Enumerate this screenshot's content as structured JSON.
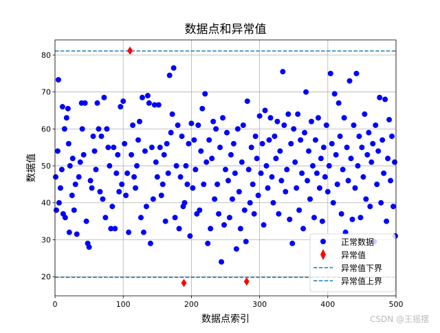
{
  "chart_data": {
    "type": "scatter",
    "title": "数据点和异常值",
    "xlabel": "数据点索引",
    "ylabel": "数据值",
    "xlim": [
      0,
      500
    ],
    "ylim": [
      14.8,
      84.1
    ],
    "xticks": [
      0,
      100,
      200,
      300,
      400,
      500
    ],
    "yticks": [
      20,
      30,
      40,
      50,
      60,
      70,
      80
    ],
    "grid": true,
    "legend_position": "bottom-right",
    "colors": {
      "normal": "#0000ff",
      "outlier": "#ff0000",
      "bounds": "#1f77b4"
    },
    "series": [
      {
        "name": "正常数据",
        "marker": "circle",
        "points": [
          [
            1,
            47
          ],
          [
            2,
            38
          ],
          [
            4,
            54
          ],
          [
            5,
            73.3
          ],
          [
            6,
            40
          ],
          [
            8,
            44
          ],
          [
            10,
            49
          ],
          [
            11,
            66
          ],
          [
            12,
            37
          ],
          [
            14,
            60
          ],
          [
            15,
            36
          ],
          [
            17,
            63
          ],
          [
            19,
            65.5
          ],
          [
            20,
            56
          ],
          [
            21,
            32
          ],
          [
            22,
            50
          ],
          [
            25,
            42
          ],
          [
            26,
            52
          ],
          [
            28,
            38
          ],
          [
            30,
            45
          ],
          [
            32,
            31.5
          ],
          [
            35,
            47
          ],
          [
            37,
            51
          ],
          [
            39,
            67
          ],
          [
            40,
            60
          ],
          [
            42,
            53
          ],
          [
            44,
            67
          ],
          [
            46,
            35
          ],
          [
            48,
            29
          ],
          [
            50,
            28
          ],
          [
            52,
            46
          ],
          [
            54,
            44
          ],
          [
            56,
            58
          ],
          [
            58,
            54
          ],
          [
            60,
            49
          ],
          [
            62,
            67
          ],
          [
            64,
            60
          ],
          [
            66,
            43
          ],
          [
            68,
            58
          ],
          [
            70,
            41
          ],
          [
            72,
            68.5
          ],
          [
            74,
            36
          ],
          [
            76,
            60
          ],
          [
            78,
            55
          ],
          [
            80,
            50
          ],
          [
            82,
            33
          ],
          [
            84,
            39
          ],
          [
            86,
            55
          ],
          [
            88,
            33
          ],
          [
            90,
            48
          ],
          [
            92,
            53
          ],
          [
            94,
            43
          ],
          [
            96,
            66
          ],
          [
            98,
            45
          ],
          [
            100,
            67.5
          ],
          [
            102,
            56
          ],
          [
            104,
            42
          ],
          [
            106,
            48
          ],
          [
            108,
            32
          ],
          [
            112,
            53
          ],
          [
            114,
            61
          ],
          [
            116,
            47
          ],
          [
            118,
            44
          ],
          [
            120,
            50
          ],
          [
            122,
            57
          ],
          [
            124,
            62
          ],
          [
            126,
            36
          ],
          [
            128,
            68.5
          ],
          [
            130,
            32
          ],
          [
            132,
            54
          ],
          [
            134,
            39
          ],
          [
            136,
            69
          ],
          [
            138,
            67
          ],
          [
            140,
            29
          ],
          [
            142,
            55
          ],
          [
            144,
            41
          ],
          [
            146,
            66.5
          ],
          [
            148,
            51
          ],
          [
            150,
            47
          ],
          [
            152,
            66.5
          ],
          [
            154,
            55
          ],
          [
            156,
            42
          ],
          [
            158,
            45
          ],
          [
            160,
            53
          ],
          [
            162,
            35
          ],
          [
            164,
            56
          ],
          [
            166,
            48
          ],
          [
            168,
            74.5
          ],
          [
            170,
            59
          ],
          [
            172,
            64
          ],
          [
            174,
            76.5
          ],
          [
            176,
            36
          ],
          [
            178,
            50
          ],
          [
            180,
            61
          ],
          [
            182,
            33
          ],
          [
            184,
            47
          ],
          [
            186,
            58
          ],
          [
            188,
            39
          ],
          [
            190,
            40
          ],
          [
            192,
            50
          ],
          [
            194,
            45
          ],
          [
            196,
            56
          ],
          [
            198,
            31
          ],
          [
            200,
            61.5
          ],
          [
            202,
            44
          ],
          [
            204,
            57
          ],
          [
            206,
            49
          ],
          [
            208,
            37
          ],
          [
            210,
            61
          ],
          [
            212,
            38
          ],
          [
            214,
            54
          ],
          [
            216,
            65.5
          ],
          [
            218,
            45
          ],
          [
            220,
            69.5
          ],
          [
            222,
            51
          ],
          [
            224,
            29
          ],
          [
            226,
            57
          ],
          [
            228,
            33
          ],
          [
            230,
            52
          ],
          [
            232,
            62
          ],
          [
            234,
            41
          ],
          [
            236,
            60
          ],
          [
            238,
            45
          ],
          [
            240,
            37
          ],
          [
            242,
            55
          ],
          [
            244,
            24
          ],
          [
            246,
            63
          ],
          [
            248,
            34
          ],
          [
            250,
            49
          ],
          [
            252,
            59
          ],
          [
            254,
            46
          ],
          [
            256,
            36
          ],
          [
            258,
            53
          ],
          [
            260,
            41
          ],
          [
            262,
            56
          ],
          [
            264,
            48
          ],
          [
            266,
            27.5
          ],
          [
            268,
            60
          ],
          [
            270,
            43
          ],
          [
            272,
            33
          ],
          [
            274,
            51
          ],
          [
            276,
            61
          ],
          [
            278,
            38
          ],
          [
            280,
            29.5
          ],
          [
            282,
            67.5
          ],
          [
            284,
            49
          ],
          [
            286,
            40
          ],
          [
            288,
            55
          ],
          [
            290,
            45
          ],
          [
            292,
            37
          ],
          [
            294,
            58
          ],
          [
            296,
            52
          ],
          [
            298,
            42
          ],
          [
            300,
            63.5
          ],
          [
            302,
            48
          ],
          [
            304,
            56
          ],
          [
            306,
            34
          ],
          [
            308,
            65
          ],
          [
            310,
            50
          ],
          [
            312,
            44
          ],
          [
            314,
            57
          ],
          [
            316,
            63
          ],
          [
            318,
            47
          ],
          [
            320,
            40
          ],
          [
            322,
            58
          ],
          [
            324,
            52
          ],
          [
            326,
            62
          ],
          [
            328,
            37
          ],
          [
            330,
            54
          ],
          [
            332,
            46
          ],
          [
            334,
            75.5
          ],
          [
            336,
            61
          ],
          [
            338,
            43
          ],
          [
            340,
            49
          ],
          [
            342,
            64
          ],
          [
            344,
            35.5
          ],
          [
            346,
            56
          ],
          [
            348,
            29
          ],
          [
            350,
            60
          ],
          [
            352,
            51
          ],
          [
            354,
            44
          ],
          [
            356,
            64
          ],
          [
            358,
            38
          ],
          [
            360,
            57
          ],
          [
            362,
            48
          ],
          [
            364,
            33
          ],
          [
            366,
            59
          ],
          [
            368,
            70
          ],
          [
            370,
            46
          ],
          [
            372,
            54
          ],
          [
            374,
            41
          ],
          [
            376,
            62
          ],
          [
            378,
            50
          ],
          [
            380,
            36
          ],
          [
            382,
            57
          ],
          [
            384,
            48
          ],
          [
            386,
            63
          ],
          [
            388,
            44
          ],
          [
            390,
            52
          ],
          [
            392,
            35
          ],
          [
            394,
            55
          ],
          [
            396,
            47
          ],
          [
            398,
            61
          ],
          [
            400,
            43
          ],
          [
            402,
            50
          ],
          [
            404,
            75
          ],
          [
            406,
            56
          ],
          [
            408,
            40
          ],
          [
            410,
            69.5
          ],
          [
            412,
            53
          ],
          [
            414,
            45
          ],
          [
            416,
            67
          ],
          [
            418,
            58
          ],
          [
            420,
            37
          ],
          [
            422,
            49
          ],
          [
            424,
            63
          ],
          [
            426,
            32
          ],
          [
            428,
            55
          ],
          [
            430,
            46
          ],
          [
            432,
            73
          ],
          [
            434,
            52
          ],
          [
            436,
            35.5
          ],
          [
            438,
            61
          ],
          [
            440,
            44
          ],
          [
            442,
            75
          ],
          [
            444,
            50
          ],
          [
            446,
            58
          ],
          [
            448,
            36
          ],
          [
            450,
            55
          ],
          [
            452,
            47
          ],
          [
            454,
            64
          ],
          [
            456,
            41
          ],
          [
            458,
            53
          ],
          [
            460,
            59
          ],
          [
            462,
            39
          ],
          [
            464,
            51
          ],
          [
            466,
            56
          ],
          [
            468,
            29.5
          ],
          [
            470,
            61
          ],
          [
            472,
            45
          ],
          [
            474,
            54
          ],
          [
            476,
            68.5
          ],
          [
            478,
            40
          ],
          [
            480,
            57
          ],
          [
            482,
            48
          ],
          [
            484,
            68
          ],
          [
            486,
            35
          ],
          [
            488,
            52
          ],
          [
            490,
            62.5
          ],
          [
            492,
            46
          ],
          [
            494,
            58
          ],
          [
            496,
            39
          ],
          [
            498,
            51
          ],
          [
            499,
            31
          ]
        ]
      },
      {
        "name": "异常值",
        "marker": "diamond",
        "points": [
          [
            110,
            81.2
          ],
          [
            189,
            18.3
          ],
          [
            281,
            18.7
          ]
        ]
      },
      {
        "name": "异常值下界",
        "type": "hline",
        "y": 19.8
      },
      {
        "name": "异常值上界",
        "type": "hline",
        "y": 81.1
      }
    ]
  },
  "watermark": "CSDN @王摇摆"
}
